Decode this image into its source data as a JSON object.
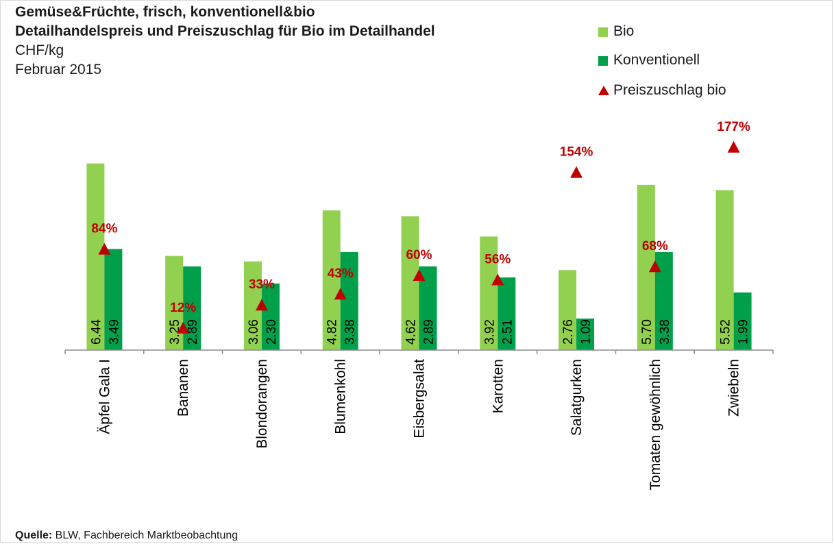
{
  "header": {
    "title_line1": "Gemüse&Früchte, frisch, konventionell&bio",
    "title_line2": "Detailhandelspreis und Preiszuschlag für Bio im Detailhandel",
    "unit": "CHF/kg",
    "period": "Februar 2015"
  },
  "legend": {
    "bio": "Bio",
    "konv": "Konventionell",
    "zuschlag": "Preiszuschlag bio"
  },
  "source": {
    "label": "Quelle:",
    "text": " BLW, Fachbereich Marktbeobachtung"
  },
  "colors": {
    "bio": "#92d050",
    "konventionell": "#00a04b",
    "preiszuschlag": "#c00000"
  },
  "chart_data": {
    "type": "bar",
    "categories": [
      "Äpfel Gala I",
      "Bananen",
      "Blondorangen",
      "Blumenkohl",
      "Eisbergsalat",
      "Karotten",
      "Salatgurken",
      "Tomaten gewöhnlich",
      "Zwiebeln"
    ],
    "series": [
      {
        "name": "Bio",
        "type": "bar",
        "values": [
          6.44,
          3.25,
          3.06,
          4.82,
          4.62,
          3.92,
          2.76,
          5.7,
          5.52
        ],
        "labels": [
          "6.44",
          "3.25",
          "3.06",
          "4.82",
          "4.62",
          "3.92",
          "2.76",
          "5.70",
          "5.52"
        ]
      },
      {
        "name": "Konventionell",
        "type": "bar",
        "values": [
          3.49,
          2.89,
          2.3,
          3.38,
          2.89,
          2.51,
          1.09,
          3.38,
          1.99
        ],
        "labels": [
          "3.49",
          "2.89",
          "2.30",
          "3.38",
          "2.89",
          "2.51",
          "1.09",
          "3.38",
          "1.99"
        ]
      },
      {
        "name": "Preiszuschlag bio",
        "type": "scatter",
        "axis": "secondary",
        "values": [
          84,
          12,
          33,
          43,
          60,
          56,
          154,
          68,
          177
        ],
        "labels": [
          "84%",
          "12%",
          "33%",
          "43%",
          "60%",
          "56%",
          "154%",
          "68%",
          "177%"
        ]
      }
    ],
    "ylim": [
      0,
      10
    ],
    "y2lim": [
      0,
      240
    ],
    "grid": false,
    "legend_position": "top-right"
  }
}
